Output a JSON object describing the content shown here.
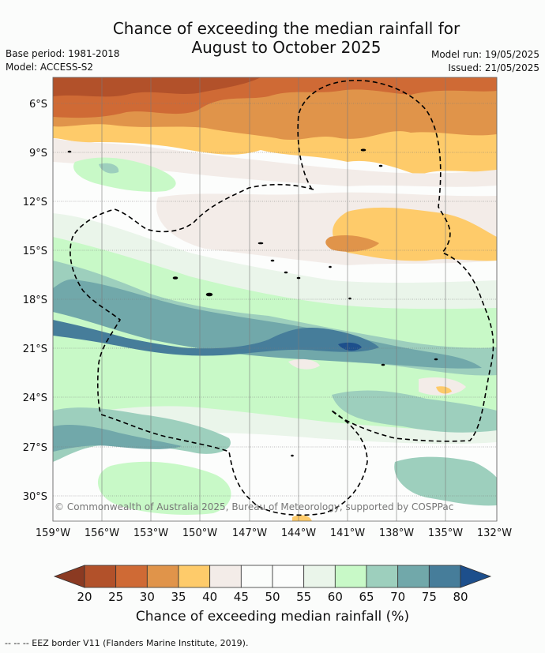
{
  "title": {
    "line1": "Chance of exceeding the median rainfall for",
    "line2": "August to October 2025"
  },
  "meta": {
    "base_period": "Base period: 1981-2018",
    "model": "Model: ACCESS-S2",
    "model_run": "Model run: 19/05/2025",
    "issued": "Issued: 21/05/2025"
  },
  "map": {
    "lat_ticks": [
      "6°S",
      "9°S",
      "12°S",
      "15°S",
      "18°S",
      "21°S",
      "24°S",
      "27°S",
      "30°S"
    ],
    "lon_ticks": [
      "159°W",
      "156°W",
      "153°W",
      "150°W",
      "147°W",
      "144°W",
      "141°W",
      "138°W",
      "135°W",
      "132°W"
    ],
    "copyright": "© Commonwealth of Australia 2025, Bureau of Meteorology, supported by COSPPac",
    "eez_border_style": "dashed black"
  },
  "colorbar": {
    "ticks": [
      "20",
      "25",
      "30",
      "35",
      "40",
      "45",
      "50",
      "55",
      "60",
      "65",
      "70",
      "75",
      "80"
    ],
    "colors": [
      "#b2512a",
      "#cf6a35",
      "#e0944a",
      "#fecb6a",
      "#f3ece8",
      "#fbfdfb",
      "#fcfdfc",
      "#eaf5ea",
      "#c8f9c7",
      "#9dcfbd",
      "#71a8aa",
      "#467d9a"
    ],
    "under_color": "#8b3a22",
    "over_color": "#1d4f8c",
    "label": "Chance of exceeding median rainfall (%)"
  },
  "footer": "--  --  -- EEZ border V11 (Flanders Marine Institute, 2019)."
}
